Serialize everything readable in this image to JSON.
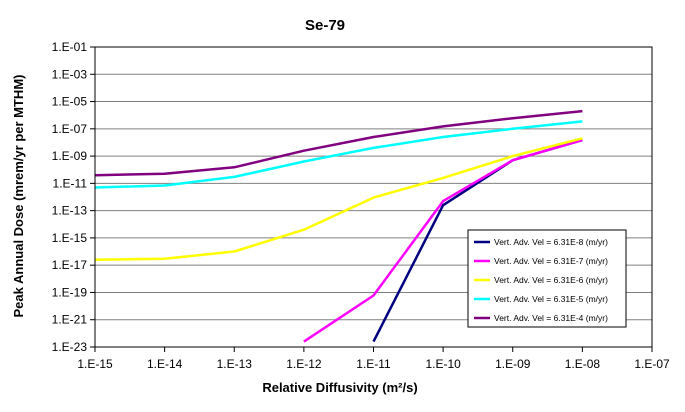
{
  "chart_data": {
    "type": "line",
    "title": "Se-79",
    "xlabel": "Relative Diffusivity (m²/s)",
    "ylabel": "Peak Annual Dose (mrem/yr per MTHM)",
    "xscale": "log",
    "yscale": "log",
    "xlim": [
      1e-15,
      1e-07
    ],
    "ylim": [
      1e-23,
      0.1
    ],
    "x_tick_labels": [
      "1.E-15",
      "1.E-14",
      "1.E-13",
      "1.E-12",
      "1.E-11",
      "1.E-10",
      "1.E-09",
      "1.E-08",
      "1.E-07"
    ],
    "y_tick_labels": [
      "1.E-23",
      "1.E-21",
      "1.E-19",
      "1.E-17",
      "1.E-15",
      "1.E-13",
      "1.E-11",
      "1.E-09",
      "1.E-07",
      "1.E-05",
      "1.E-03",
      "1.E-01"
    ],
    "grid": "horizontal major gridlines",
    "legend_position": "bottom-right",
    "series": [
      {
        "name": "Vert. Adv. Vel = 6.31E-8 (m/yr)",
        "color": "#000080",
        "points": [
          [
            1e-11,
            2.5e-23
          ],
          [
            1e-10,
            2.5e-13
          ],
          [
            1e-09,
            5e-10
          ],
          [
            1e-08,
            1.5e-08
          ]
        ]
      },
      {
        "name": "Vert. Adv. Vel = 6.31E-7 (m/yr)",
        "color": "#ff00ff",
        "points": [
          [
            1e-12,
            2.5e-23
          ],
          [
            1e-11,
            6e-20
          ],
          [
            1e-10,
            5e-13
          ],
          [
            1e-09,
            5e-10
          ],
          [
            1e-08,
            1.5e-08
          ]
        ]
      },
      {
        "name": "Vert. Adv. Vel = 6.31E-6 (m/yr)",
        "color": "#ffff00",
        "points": [
          [
            1e-15,
            2.5e-17
          ],
          [
            1e-14,
            3e-17
          ],
          [
            1e-13,
            1e-16
          ],
          [
            1e-12,
            4e-15
          ],
          [
            1e-11,
            9e-13
          ],
          [
            1e-10,
            2.5e-11
          ],
          [
            1e-09,
            1e-09
          ],
          [
            1e-08,
            2e-08
          ]
        ]
      },
      {
        "name": "Vert. Adv. Vel = 6.31E-5 (m/yr)",
        "color": "#00ffff",
        "points": [
          [
            1e-15,
            5e-12
          ],
          [
            1e-14,
            7e-12
          ],
          [
            1e-13,
            3e-11
          ],
          [
            1e-12,
            4e-10
          ],
          [
            1e-11,
            4e-09
          ],
          [
            1e-10,
            2.5e-08
          ],
          [
            1e-09,
            1e-07
          ],
          [
            1e-08,
            3.5e-07
          ]
        ]
      },
      {
        "name": "Vert. Adv. Vel = 6.31E-4 (m/yr)",
        "color": "#800080",
        "points": [
          [
            1e-15,
            4e-11
          ],
          [
            1e-14,
            5e-11
          ],
          [
            1e-13,
            1.5e-10
          ],
          [
            1e-12,
            2.5e-09
          ],
          [
            1e-11,
            2.5e-08
          ],
          [
            1e-10,
            1.5e-07
          ],
          [
            1e-09,
            6e-07
          ],
          [
            1e-08,
            2e-06
          ]
        ]
      }
    ]
  }
}
